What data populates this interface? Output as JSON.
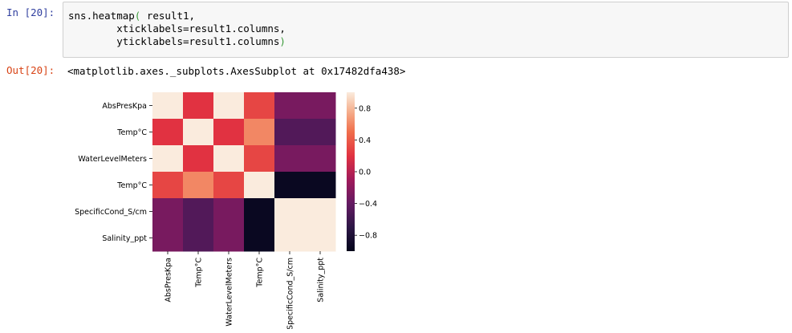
{
  "cell": {
    "in_prompt": "In [20]:",
    "out_prompt": "Out[20]:",
    "code_lines": [
      {
        "pre": "sns.heatmap",
        "open": "(",
        "post": " result1,"
      },
      {
        "pre": "        xticklabels=result1.columns,",
        "open": "",
        "post": ""
      },
      {
        "pre": "        yticklabels=result1.columns",
        "close": ")"
      }
    ],
    "output_text": "<matplotlib.axes._subplots.AxesSubplot at 0x17482dfa438>"
  },
  "chart_data": {
    "type": "heatmap",
    "labels": [
      "AbsPresKpa",
      "Temp°C",
      "WaterLevelMeters",
      "Temp°C",
      "SpecificCond_S/cm",
      "Salinity_ppt"
    ],
    "matrix": [
      [
        1.0,
        0.2,
        1.0,
        0.3,
        -0.3,
        -0.3
      ],
      [
        0.2,
        1.0,
        0.2,
        0.6,
        -0.5,
        -0.5
      ],
      [
        1.0,
        0.2,
        1.0,
        0.3,
        -0.3,
        -0.3
      ],
      [
        0.3,
        0.6,
        0.3,
        1.0,
        -0.95,
        -0.95
      ],
      [
        -0.3,
        -0.5,
        -0.3,
        -0.95,
        1.0,
        1.0
      ],
      [
        -0.3,
        -0.5,
        -0.3,
        -0.95,
        1.0,
        1.0
      ]
    ],
    "colorbar": {
      "min": -1.0,
      "max": 1.0,
      "ticks": [
        0.8,
        0.4,
        0.0,
        -0.4,
        -0.8
      ],
      "tick_labels": [
        "0.8",
        "0.4",
        "0.0",
        "−0.4",
        "−0.8"
      ]
    },
    "colormap": "rocket",
    "title": "",
    "xlabel": "",
    "ylabel": ""
  }
}
